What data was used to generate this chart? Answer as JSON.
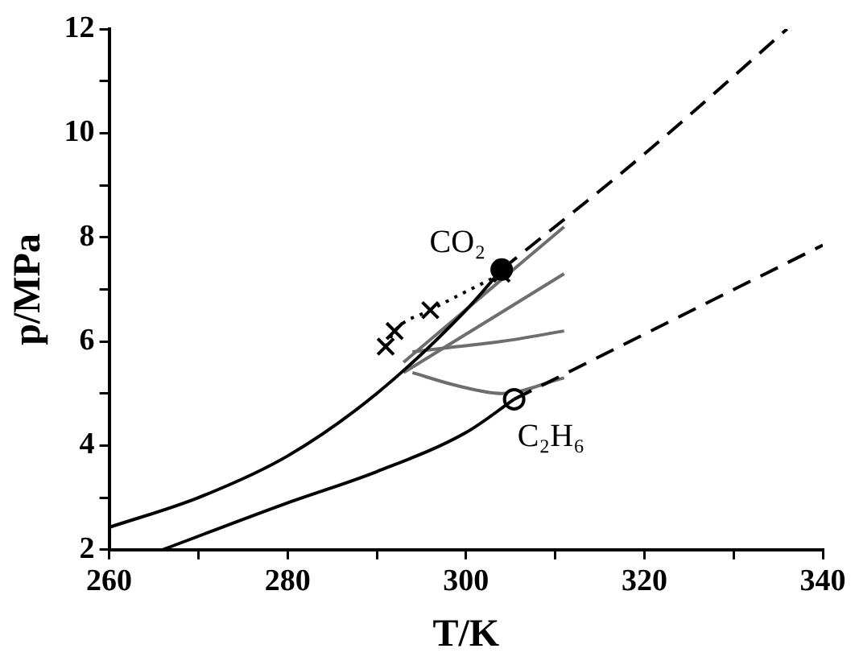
{
  "chart_data": {
    "type": "line",
    "xlabel": "T/K",
    "ylabel": "p/MPa",
    "xlim": [
      260,
      340
    ],
    "ylim": [
      2,
      12
    ],
    "xticks": [
      260,
      {
        "value": 270,
        "label": null
      },
      280,
      {
        "value": 290,
        "label": null
      },
      300,
      {
        "value": 310,
        "label": null
      },
      320,
      {
        "value": 330,
        "label": null
      },
      340
    ],
    "yticks": [
      2,
      {
        "value": 3,
        "label": null
      },
      4,
      {
        "value": 5,
        "label": null
      },
      6,
      {
        "value": 7,
        "label": null
      },
      8,
      {
        "value": 9,
        "label": null
      },
      10,
      {
        "value": 11,
        "label": null
      },
      12
    ],
    "grid": false,
    "legend": false,
    "series": [
      {
        "color": "#000000",
        "line_style": "solid",
        "marker": "none",
        "x": [
          260,
          270,
          280,
          290,
          300,
          304
        ],
        "values": [
          2.43,
          3.0,
          3.8,
          5.0,
          6.6,
          7.38
        ]
      },
      {
        "color": "#000000",
        "line_style": "dashed",
        "marker": "none",
        "x": [
          304,
          320,
          336
        ],
        "values": [
          7.38,
          9.6,
          12
        ]
      },
      {
        "color": "#000000",
        "line_style": "solid",
        "marker": "none",
        "x": [
          266,
          280,
          290,
          300,
          305.4
        ],
        "values": [
          2,
          2.9,
          3.5,
          4.25,
          4.89
        ]
      },
      {
        "color": "#000000",
        "line_style": "dashed",
        "marker": "none",
        "x": [
          305.4,
          340
        ],
        "values": [
          4.89,
          7.85
        ]
      },
      {
        "color": "#000000",
        "line_style": "dotted",
        "marker": "cross",
        "x": [
          291,
          292,
          296,
          304
        ],
        "values": [
          5.9,
          6.2,
          6.6,
          7.3
        ]
      },
      {
        "type": "scatter",
        "color": "#000000",
        "marker": "circle",
        "x": [
          304
        ],
        "values": [
          7.38
        ]
      },
      {
        "type": "scatter",
        "color": "#ffffff",
        "marker": "circle",
        "x": [
          305.4
        ],
        "values": [
          4.89
        ]
      },
      {
        "color": "#6e6e6e",
        "line_style": "solid",
        "marker": "none",
        "x": [
          293,
          302,
          311
        ],
        "values": [
          5.6,
          6.9,
          8.2
        ]
      },
      {
        "color": "#6e6e6e",
        "line_style": "solid",
        "marker": "none",
        "x": [
          293,
          302,
          311
        ],
        "values": [
          5.4,
          6.35,
          7.3
        ]
      },
      {
        "color": "#6e6e6e",
        "line_style": "solid",
        "marker": "none",
        "x": [
          294,
          299,
          304,
          311
        ],
        "values": [
          5.8,
          5.9,
          6.0,
          6.2
        ]
      },
      {
        "color": "#6e6e6e",
        "line_style": "solid",
        "marker": "none",
        "x": [
          294,
          299,
          304,
          311
        ],
        "values": [
          5.4,
          5.15,
          5.0,
          5.3
        ]
      }
    ],
    "annotations": [
      {
        "text": "CO₂",
        "x": 304,
        "y": 7.38
      },
      {
        "text": "C₂H₆",
        "x": 305.4,
        "y": 4.89
      }
    ]
  }
}
